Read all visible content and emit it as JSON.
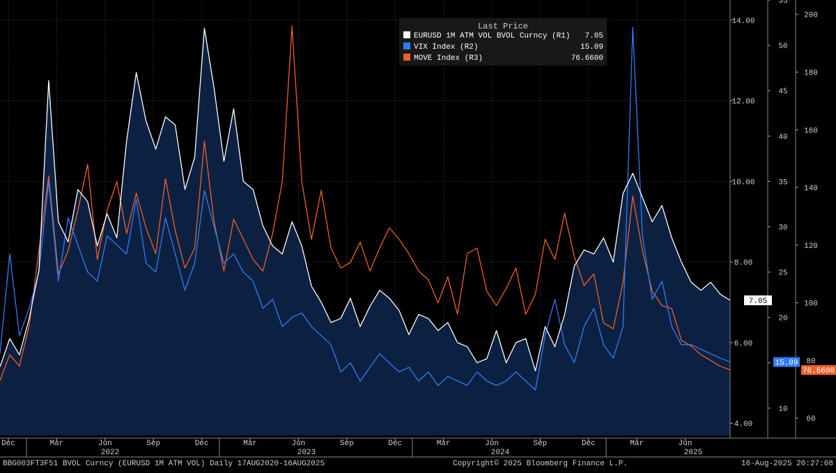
{
  "colors": {
    "background": "#000000",
    "area_fill": "#0c2142",
    "eurusd": "#ffffff",
    "vix": "#2f7cf6",
    "move": "#f0602a",
    "grid": "#4a4a4a",
    "text": "#d0d0d0"
  },
  "chart_data": {
    "type": "line",
    "title": "Last Price",
    "legend_position": "top-center",
    "x_tick_labels": [
      "Dec",
      "Mar",
      "Jun",
      "Sep",
      "Dec",
      "Mar",
      "Jun",
      "Sep",
      "Dec",
      "Mar",
      "Jun",
      "Sep",
      "Dec",
      "Mar",
      "Jun"
    ],
    "x_year_labels": [
      "2022",
      "2023",
      "2024",
      "2025"
    ],
    "axes": {
      "r1": {
        "name": "R1",
        "range": [
          3.7,
          14.5
        ],
        "ticks": [
          4.0,
          6.0,
          8.0,
          10.0,
          12.0,
          14.0
        ],
        "tick_labels": [
          "4.00",
          "6.00",
          "8.00",
          "10.00",
          "12.00",
          "14.00"
        ]
      },
      "r2": {
        "name": "R2",
        "range": [
          7,
          55
        ],
        "ticks": [
          10,
          15,
          20,
          25,
          30,
          35,
          40,
          45,
          50,
          55
        ],
        "tick_labels": [
          "10",
          "15",
          "20",
          "25",
          "30",
          "35",
          "40",
          "45",
          "50",
          "55"
        ]
      },
      "r3": {
        "name": "R3",
        "range": [
          54,
          205
        ],
        "ticks": [
          60,
          80,
          100,
          120,
          140,
          160,
          180,
          200
        ],
        "tick_labels": [
          "60",
          "80",
          "100",
          "120",
          "140",
          "160",
          "180",
          "200"
        ]
      }
    },
    "series": [
      {
        "name": "EURUSD 1M ATM VOL BVOL Curncy (R1)",
        "axis": "r1",
        "last_label": "7.05",
        "last": 7.05,
        "values": [
          5.4,
          6.1,
          5.7,
          6.6,
          7.8,
          12.5,
          9.0,
          8.5,
          9.8,
          9.5,
          8.4,
          9.2,
          8.6,
          11.0,
          12.7,
          11.5,
          10.8,
          11.6,
          11.4,
          9.8,
          10.6,
          13.8,
          12.3,
          10.5,
          11.8,
          10.0,
          9.8,
          8.9,
          8.4,
          8.2,
          9.0,
          8.4,
          7.4,
          7.0,
          6.5,
          6.6,
          7.1,
          6.4,
          6.9,
          7.3,
          7.1,
          6.8,
          6.2,
          6.7,
          6.6,
          6.3,
          6.5,
          6.0,
          5.9,
          5.5,
          5.6,
          6.3,
          5.5,
          6.0,
          6.1,
          5.3,
          6.4,
          5.9,
          6.7,
          7.9,
          8.3,
          8.2,
          8.6,
          8.0,
          9.7,
          10.2,
          9.6,
          9.0,
          9.4,
          8.6,
          8.0,
          7.5,
          7.3,
          7.5,
          7.2,
          7.05
        ]
      },
      {
        "name": "VIX Index (R2)",
        "axis": "r2",
        "last_label": "15.09",
        "last": 15.09,
        "values": [
          16.0,
          27.0,
          18.0,
          21.0,
          25.0,
          35.0,
          24.0,
          31.0,
          28.0,
          25.0,
          24.0,
          29.0,
          28.0,
          27.0,
          33.0,
          26.0,
          25.0,
          31.0,
          27.0,
          23.0,
          26.0,
          34.0,
          30.0,
          26.0,
          27.0,
          25.0,
          24.0,
          21.0,
          22.0,
          19.0,
          20.0,
          20.5,
          19.0,
          18.0,
          17.0,
          14.0,
          15.0,
          13.0,
          14.5,
          16.0,
          15.0,
          14.0,
          14.5,
          13.0,
          14.0,
          12.5,
          13.5,
          13.0,
          12.5,
          14.0,
          13.0,
          12.5,
          13.0,
          14.0,
          13.0,
          12.0,
          18.0,
          22.0,
          17.0,
          15.0,
          19.0,
          21.0,
          17.0,
          15.5,
          19.0,
          52.0,
          29.0,
          22.0,
          24.0,
          19.0,
          17.0,
          17.0,
          16.5,
          16.0,
          15.5,
          15.09
        ]
      },
      {
        "name": "MOVE Index (R3)",
        "axis": "r3",
        "last_label": "76.6600",
        "last": 76.66,
        "values": [
          73.0,
          82.0,
          78.0,
          92.0,
          118.0,
          144.0,
          110.0,
          118.0,
          132.0,
          148.0,
          115.0,
          132.0,
          142.0,
          124.0,
          138.0,
          126.0,
          117.0,
          143.0,
          125.0,
          112.0,
          119.0,
          156.0,
          128.0,
          111.0,
          129.0,
          122.0,
          115.0,
          111.0,
          124.0,
          142.0,
          196.0,
          142.0,
          122.0,
          139.0,
          119.0,
          112.0,
          114.0,
          121.0,
          111.0,
          119.0,
          126.0,
          122.0,
          117.0,
          111.0,
          108.0,
          100.0,
          109.0,
          96.0,
          117.0,
          119.0,
          104.0,
          99.0,
          105.0,
          112.0,
          96.0,
          103.0,
          122.0,
          115.0,
          131.0,
          116.0,
          106.0,
          110.0,
          93.0,
          91.0,
          107.0,
          137.0,
          118.0,
          104.0,
          99.0,
          98.0,
          87.0,
          85.0,
          82.0,
          80.0,
          78.0,
          76.66
        ]
      }
    ]
  },
  "footer": {
    "left": "BBG003FT3F51 BVOL Curncy (EURUSD 1M ATM VOL) Daily 17AUG2020-16AUG2025",
    "center": "Copyright© 2025 Bloomberg Finance L.P.",
    "right": "16-Aug-2025 20:27:08"
  }
}
